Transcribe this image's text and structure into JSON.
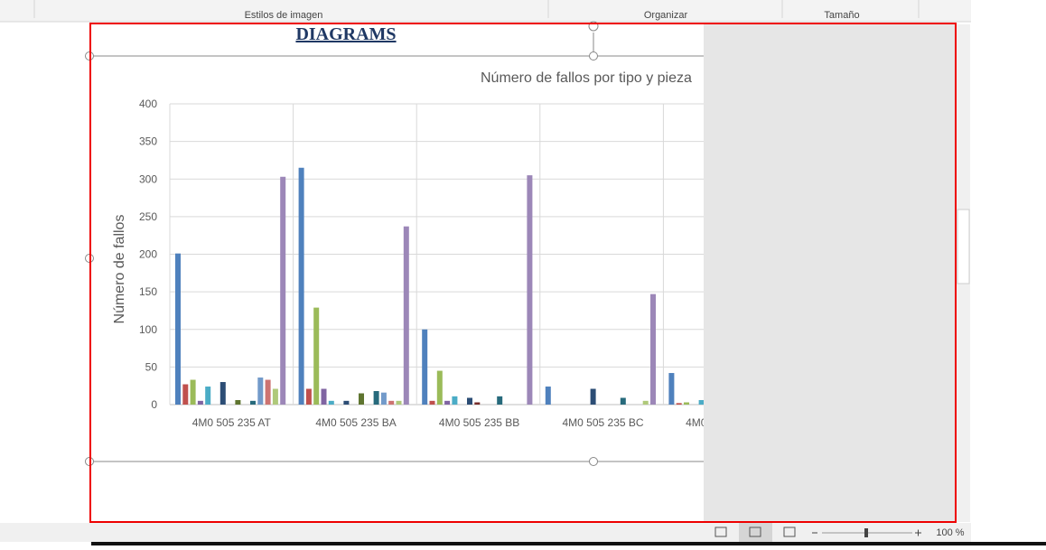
{
  "ribbon": {
    "groups": [
      "Estilos de imagen",
      "Organizar",
      "Tamaño"
    ]
  },
  "document": {
    "heading": "DIAGRAMS"
  },
  "chart_data": {
    "type": "bar",
    "title": "Número de fallos por tipo y pieza",
    "y_label": "Número de fallos",
    "categories": [
      "4M0 505 235 AT",
      "4M0 505 235 BA",
      "4M0 505 235 BB",
      "4M0 505 235 BC",
      "4M0"
    ],
    "ylim": [
      0,
      400
    ],
    "yticks": [
      0,
      50,
      100,
      150,
      200,
      250,
      300,
      350,
      400
    ],
    "grid": true,
    "series": [
      {
        "color": "#4f81bd",
        "values": [
          201,
          315,
          100,
          24,
          42
        ]
      },
      {
        "color": "#c0504d",
        "values": [
          27,
          21,
          5,
          0,
          2
        ]
      },
      {
        "color": "#9bbb59",
        "values": [
          33,
          129,
          45,
          0,
          3
        ]
      },
      {
        "color": "#8064a2",
        "values": [
          5,
          21,
          5,
          0,
          0
        ]
      },
      {
        "color": "#4bacc6",
        "values": [
          24,
          5,
          11,
          0,
          6
        ]
      },
      {
        "color": "#f79646",
        "values": [
          0,
          0,
          0,
          0,
          null
        ]
      },
      {
        "color": "#2c4d75",
        "values": [
          30,
          5,
          9,
          21,
          null
        ]
      },
      {
        "color": "#772c2a",
        "values": [
          0,
          0,
          3,
          0,
          null
        ]
      },
      {
        "color": "#5f7530",
        "values": [
          6,
          15,
          0,
          0,
          null
        ]
      },
      {
        "color": "#4d3b62",
        "values": [
          0,
          0,
          0,
          0,
          null
        ]
      },
      {
        "color": "#276a7c",
        "values": [
          5,
          18,
          11,
          9,
          null
        ]
      },
      {
        "color": "#729aca",
        "values": [
          36,
          16,
          0,
          0,
          null
        ]
      },
      {
        "color": "#cd7371",
        "values": [
          33,
          5,
          0,
          0,
          null
        ]
      },
      {
        "color": "#afc97a",
        "values": [
          21,
          5,
          0,
          5,
          null
        ]
      },
      {
        "color": "#9c87b8",
        "values": [
          303,
          237,
          305,
          147,
          null
        ]
      }
    ]
  },
  "status_bar": {
    "zoom": "100 %"
  }
}
